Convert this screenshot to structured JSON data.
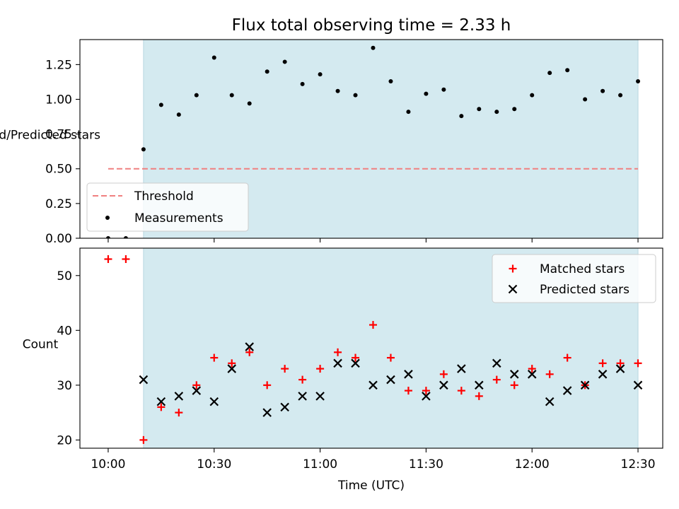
{
  "chart_data": [
    {
      "type": "scatter",
      "title": "Flux total observing time = 2.33 h",
      "xlabel": "",
      "ylabel": "Matched/Predicted stars",
      "ylim": [
        0,
        1.43
      ],
      "yticks": [
        "0.00",
        "0.25",
        "0.50",
        "0.75",
        "1.00",
        "1.25"
      ],
      "grid": false,
      "legend_position": "lower-left",
      "threshold": {
        "name": "Threshold",
        "value": 0.5,
        "x_start": "10:00",
        "x_end": "12:30",
        "color": "#f08080",
        "style": "dashed"
      },
      "shaded_region": {
        "x_start": "10:10",
        "x_end": "12:30",
        "color": "#d4eaf0"
      },
      "series": [
        {
          "name": "Measurements",
          "color": "#000000",
          "marker": "dot",
          "x": [
            "10:00",
            "10:05",
            "10:10",
            "10:15",
            "10:20",
            "10:25",
            "10:30",
            "10:35",
            "10:40",
            "10:45",
            "10:50",
            "10:55",
            "11:00",
            "11:05",
            "11:10",
            "11:15",
            "11:20",
            "11:25",
            "11:30",
            "11:35",
            "11:40",
            "11:45",
            "11:50",
            "11:55",
            "12:00",
            "12:05",
            "12:10",
            "12:15",
            "12:20",
            "12:25",
            "12:30"
          ],
          "values": [
            0.0,
            0.0,
            0.64,
            0.96,
            0.89,
            1.03,
            1.3,
            1.03,
            0.97,
            1.2,
            1.27,
            1.11,
            1.18,
            1.06,
            1.03,
            1.37,
            1.13,
            0.91,
            1.04,
            1.07,
            0.88,
            0.93,
            0.91,
            0.93,
            1.03,
            1.19,
            1.21,
            1.0,
            1.06,
            1.03,
            1.13
          ]
        }
      ]
    },
    {
      "type": "scatter",
      "title": "",
      "xlabel": "Time (UTC)",
      "ylabel": "Count",
      "ylim": [
        18.5,
        55
      ],
      "yticks": [
        "20",
        "30",
        "40",
        "50"
      ],
      "xticks": [
        "10:00",
        "10:30",
        "11:00",
        "11:30",
        "12:00",
        "12:30"
      ],
      "grid": false,
      "legend_position": "upper-right",
      "shaded_region": {
        "x_start": "10:10",
        "x_end": "12:30",
        "color": "#d4eaf0"
      },
      "series": [
        {
          "name": "Matched stars",
          "color": "#ff0000",
          "marker": "plus",
          "x": [
            "10:00",
            "10:05",
            "10:10",
            "10:15",
            "10:20",
            "10:25",
            "10:30",
            "10:35",
            "10:40",
            "10:45",
            "10:50",
            "10:55",
            "11:00",
            "11:05",
            "11:10",
            "11:15",
            "11:20",
            "11:25",
            "11:30",
            "11:35",
            "11:40",
            "11:45",
            "11:50",
            "11:55",
            "12:00",
            "12:05",
            "12:10",
            "12:15",
            "12:20",
            "12:25",
            "12:30"
          ],
          "values": [
            53,
            53,
            20,
            26,
            25,
            30,
            35,
            34,
            36,
            30,
            33,
            31,
            33,
            36,
            35,
            41,
            35,
            29,
            29,
            32,
            29,
            28,
            31,
            30,
            33,
            32,
            35,
            30,
            34,
            34,
            34
          ]
        },
        {
          "name": "Predicted stars",
          "color": "#000000",
          "marker": "x",
          "x": [
            "10:10",
            "10:15",
            "10:20",
            "10:25",
            "10:30",
            "10:35",
            "10:40",
            "10:45",
            "10:50",
            "10:55",
            "11:00",
            "11:05",
            "11:10",
            "11:15",
            "11:20",
            "11:25",
            "11:30",
            "11:35",
            "11:40",
            "11:45",
            "11:50",
            "11:55",
            "12:00",
            "12:05",
            "12:10",
            "12:15",
            "12:20",
            "12:25",
            "12:30"
          ],
          "values": [
            31,
            27,
            28,
            29,
            27,
            33,
            37,
            25,
            26,
            28,
            28,
            34,
            34,
            30,
            31,
            32,
            28,
            30,
            33,
            30,
            34,
            32,
            32,
            27,
            29,
            30,
            32,
            33,
            30
          ]
        }
      ]
    }
  ]
}
